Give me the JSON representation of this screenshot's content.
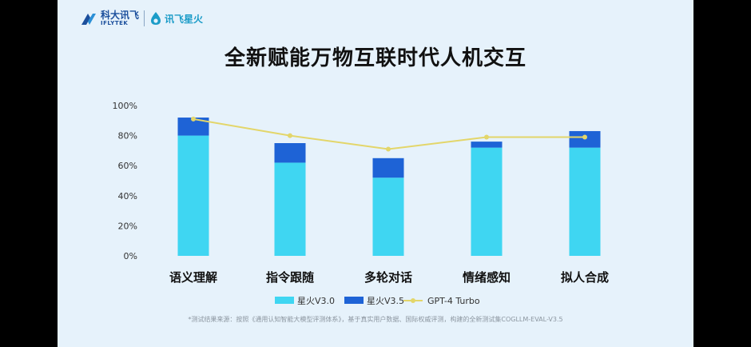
{
  "header": {
    "logo_cn": "科大讯飞",
    "logo_en": "IFLYTEK",
    "product_logo": "讯飞星火"
  },
  "title": "全新赋能万物互联时代人机交互",
  "footnote": "*测试结果来源：按照《通用认知智能大模型评测体系》，基于真实用户数据、国际权威评测，构建的全新测试集COGLLM-EVAL-V3.5",
  "colors": {
    "v30": "#3fd6f2",
    "v35": "#1e63d6",
    "gpt4": "#e3d66a",
    "slide_bg": "#e6f2fb"
  },
  "chart_data": {
    "type": "bar",
    "stacked": true,
    "categories": [
      "语义理解",
      "指令跟随",
      "多轮对话",
      "情绪感知",
      "拟人合成"
    ],
    "series": [
      {
        "name": "星火V3.0",
        "kind": "bar",
        "values": [
          80,
          62,
          52,
          72,
          72
        ]
      },
      {
        "name": "星火V3.5",
        "kind": "bar",
        "values": [
          12,
          13,
          13,
          4,
          11
        ]
      },
      {
        "name": "GPT-4 Turbo",
        "kind": "line",
        "values": [
          91,
          80,
          71,
          79,
          79
        ]
      }
    ],
    "ylim": [
      0,
      100
    ],
    "yticks": [
      "0%",
      "20%",
      "40%",
      "60%",
      "80%",
      "100%"
    ],
    "grid": false,
    "legend": "bottom"
  }
}
